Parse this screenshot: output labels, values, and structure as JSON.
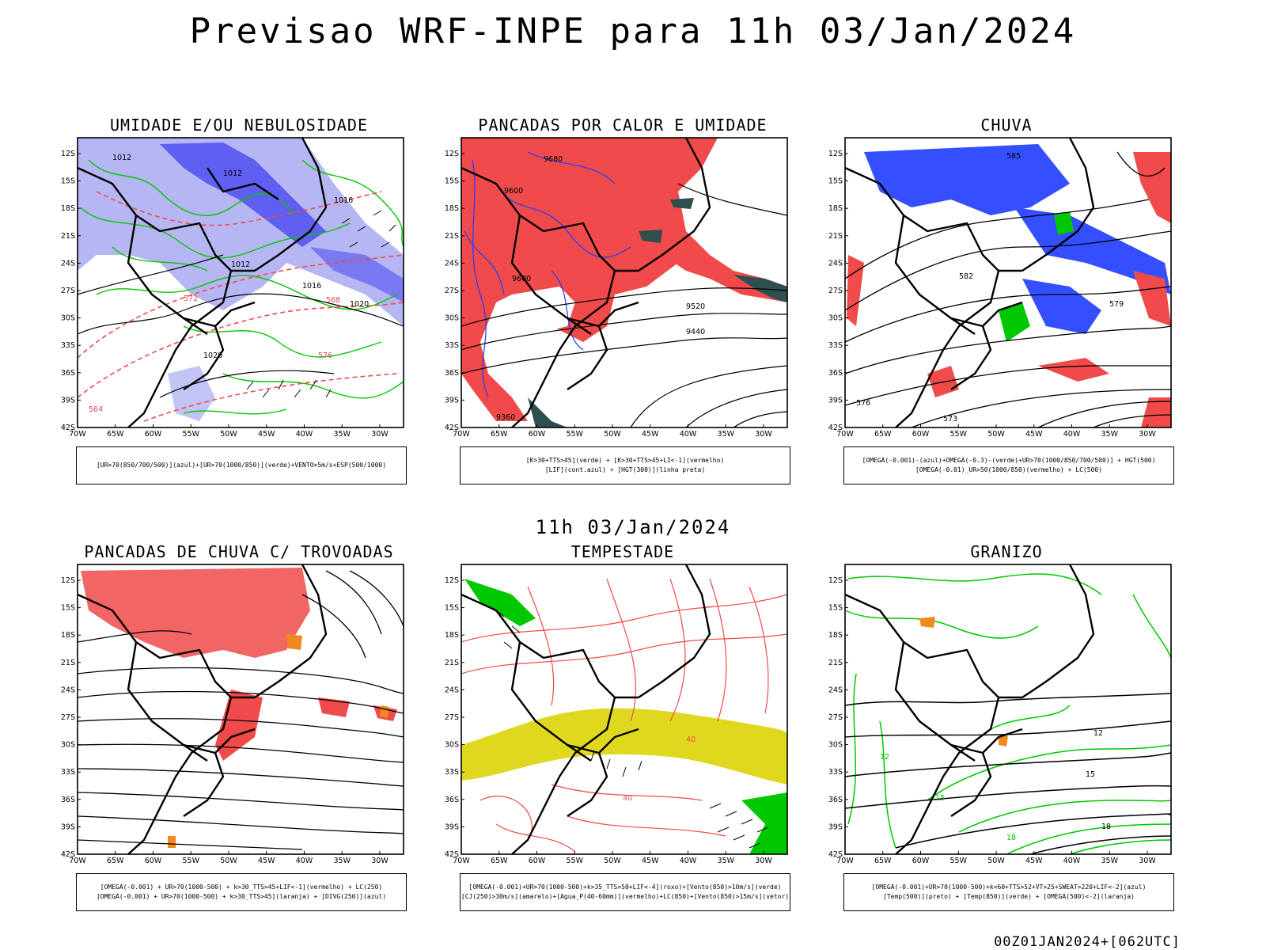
{
  "title": "Previsao WRF-INPE  para 11h 03/Jan/2024",
  "mid_title": "11h 03/Jan/2024",
  "footer": "00Z01JAN2024+[062UTC]",
  "axes": {
    "lat_labels": [
      "12S",
      "15S",
      "18S",
      "21S",
      "24S",
      "27S",
      "30S",
      "33S",
      "36S",
      "39S",
      "42S"
    ],
    "lon_labels": [
      "70W",
      "65W",
      "60W",
      "55W",
      "50W",
      "45W",
      "40W",
      "35W",
      "30W"
    ]
  },
  "colors": {
    "red": "#f04a4a",
    "green": "#00c800",
    "blue": "#1e3cff",
    "lavender": "#9b9bef",
    "yellow": "#e0d81e",
    "orange": "#f08a1e",
    "darkteal": "#2f4f4f"
  },
  "panels": [
    {
      "title": "UMIDADE E/OU NEBULOSIDADE",
      "legend": [
        "[UR>70(850/700/500)](azul)+[UR>70(1000/850)](verde)+VENTO>5m/s+ESP(500/1000)"
      ],
      "contour_labels": [
        "1012",
        "1012",
        "1012",
        "1016",
        "1016",
        "1020",
        "1020",
        "564",
        "568",
        "572",
        "576"
      ]
    },
    {
      "title": "PANCADAS POR CALOR E UMIDADE",
      "legend": [
        "[K>30+TTS>45](verde) + [K>30+TTS>45+LI<-1](vermelho)",
        "[LIF](cont.azul) + [HGT(300)](linha preta)"
      ],
      "contour_labels": [
        "9680",
        "9600",
        "9600",
        "9520",
        "9440",
        "9360"
      ]
    },
    {
      "title": "CHUVA",
      "legend": [
        "[OMEGA(-0.001)-(azul)+OMEGA(-0.3)-(verde)+UR>70(1000/850/700/500)] + HGT(500)",
        "[OMEGA(-0.01)_UR>50(1000/850)(vermelho) + LC(500)"
      ],
      "contour_labels": [
        "585",
        "582",
        "579",
        "576",
        "573"
      ]
    },
    {
      "title": "PANCADAS DE CHUVA C/ TROVOADAS",
      "legend": [
        "[OMEGA(-0.001) + UR>70(1000-500) + k>30_TTS>45+LIF<-1](vermelho) + LC(250)",
        "[OMEGA(-0.001) + UR>70(1000-500) + k>30_TTS>45](laranja) + [DIVG(250)](azul)"
      ],
      "contour_labels": []
    },
    {
      "title": "TEMPESTADE",
      "legend": [
        "[OMEGA(-0.001)+UR>70(1000-500)+k>35_TTS>50+LIF<-4](roxo)+[Vento(850)>10m/s](verde)",
        "[CJ(250)>30m/s](amarelo)+[Agua_P(40-60mm)](vermelho)+LC(850)+[Vento(850)>15m/s](vetor)"
      ],
      "contour_labels": [
        "40",
        "40"
      ]
    },
    {
      "title": "GRANIZO",
      "legend": [
        "[OMEGA(-0.001)+UR>70(1000-500)+k<60+TTS>52+VT>25+SWEAT>220+LIF<-2](azul)",
        "[Temp(500)](preto) + [Temp(850)](verde) + [OMEGA(500)<-2](laranja)"
      ],
      "contour_labels": [
        "12",
        "15",
        "18",
        "12",
        "15",
        "18"
      ]
    }
  ]
}
